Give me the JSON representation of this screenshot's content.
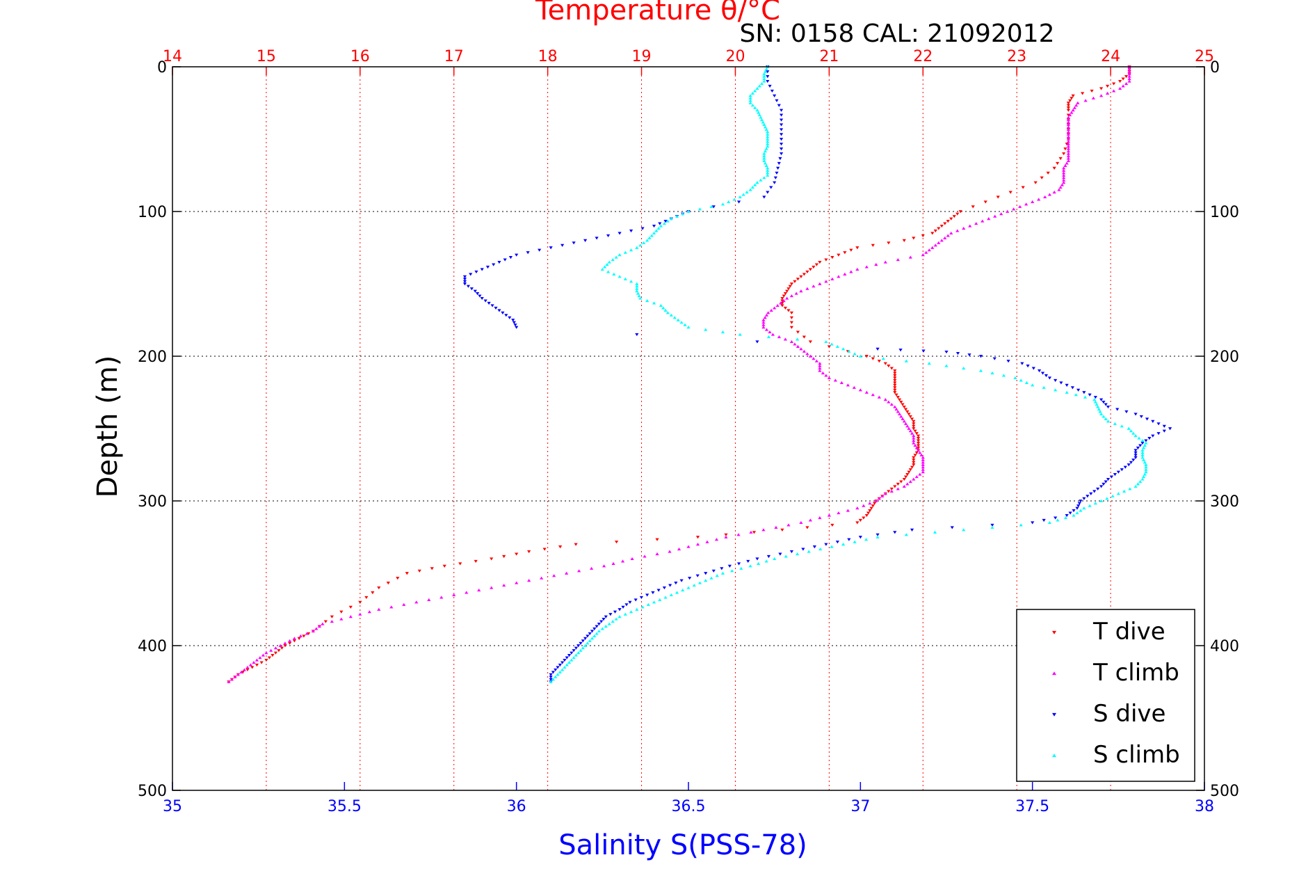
{
  "chart_data": {
    "type": "scatter",
    "title": "Temperature θ/°C",
    "subtitle": "SN: 0158  CAL: 21092012",
    "xlabel_top": "Temperature θ/°C",
    "xlabel_bottom": "Salinity S(PSS-78)",
    "ylabel": "Depth (m)",
    "x_top_lim": [
      14,
      25
    ],
    "x_top_ticks": [
      "14",
      "15",
      "16",
      "17",
      "18",
      "19",
      "20",
      "21",
      "22",
      "23",
      "24",
      "25"
    ],
    "x_bottom_lim": [
      35,
      38
    ],
    "x_bottom_ticks": [
      "35",
      "35.5",
      "36",
      "36.5",
      "37",
      "37.5",
      "38"
    ],
    "ylim": [
      0,
      500
    ],
    "y_reversed": true,
    "y_ticks": [
      "0",
      "100",
      "200",
      "300",
      "400",
      "500"
    ],
    "grid": true,
    "legend_position": "bottom-right",
    "colors": {
      "T dive": "#ff0000",
      "T climb": "#ff00ff",
      "S dive": "#0000ff",
      "S climb": "#00ffff",
      "top_axis": "#ff0000",
      "bottom_axis": "#0000ff"
    },
    "series": [
      {
        "name": "T dive",
        "axis": "temperature",
        "marker": "triangle-down",
        "depth": [
          0,
          5,
          10,
          15,
          20,
          25,
          30,
          40,
          50,
          60,
          70,
          80,
          90,
          100,
          105,
          110,
          115,
          120,
          125,
          130,
          135,
          140,
          145,
          150,
          155,
          160,
          165,
          170,
          180,
          190,
          200,
          205,
          210,
          215,
          220,
          225,
          230,
          235,
          240,
          245,
          250,
          255,
          260,
          265,
          270,
          275,
          280,
          285,
          290,
          295,
          300,
          305,
          310,
          315,
          320,
          325,
          330,
          335,
          340,
          345,
          350,
          360,
          370,
          380,
          390,
          395,
          400,
          405,
          410,
          415,
          420,
          425
        ],
        "values": [
          24.2,
          24.2,
          24.1,
          23.9,
          23.6,
          23.55,
          23.55,
          23.55,
          23.55,
          23.5,
          23.4,
          23.2,
          22.8,
          22.4,
          22.3,
          22.2,
          22.1,
          21.8,
          21.3,
          21.1,
          20.9,
          20.8,
          20.7,
          20.6,
          20.55,
          20.5,
          20.5,
          20.6,
          20.6,
          20.8,
          21.4,
          21.6,
          21.7,
          21.7,
          21.7,
          21.7,
          21.75,
          21.8,
          21.85,
          21.9,
          21.9,
          21.95,
          21.95,
          21.95,
          21.9,
          21.9,
          21.85,
          21.8,
          21.7,
          21.6,
          21.5,
          21.45,
          21.4,
          21.3,
          20.5,
          19.6,
          18.3,
          17.8,
          17.4,
          16.9,
          16.5,
          16.2,
          16.0,
          15.7,
          15.5,
          15.35,
          15.2,
          15.1,
          15.0,
          14.85,
          14.7,
          14.6
        ]
      },
      {
        "name": "T climb",
        "axis": "temperature",
        "marker": "triangle-up",
        "depth": [
          425,
          420,
          415,
          410,
          405,
          400,
          395,
          390,
          385,
          380,
          375,
          370,
          365,
          360,
          355,
          350,
          345,
          340,
          335,
          330,
          325,
          320,
          315,
          310,
          305,
          300,
          295,
          290,
          285,
          280,
          275,
          270,
          265,
          260,
          255,
          250,
          245,
          240,
          235,
          230,
          225,
          220,
          215,
          210,
          205,
          200,
          195,
          190,
          185,
          180,
          175,
          170,
          165,
          160,
          155,
          150,
          145,
          140,
          135,
          130,
          125,
          120,
          115,
          110,
          105,
          100,
          95,
          90,
          85,
          80,
          75,
          70,
          65,
          60,
          55,
          50,
          45,
          40,
          35,
          30,
          25,
          20,
          15,
          10,
          5,
          0
        ],
        "values": [
          14.6,
          14.7,
          14.8,
          14.9,
          15.0,
          15.15,
          15.3,
          15.5,
          15.6,
          15.9,
          16.2,
          16.6,
          17.0,
          17.4,
          17.8,
          18.2,
          18.6,
          18.9,
          19.3,
          19.6,
          19.9,
          20.3,
          20.7,
          21.0,
          21.3,
          21.5,
          21.6,
          21.8,
          21.9,
          22.0,
          22.0,
          22.0,
          21.95,
          21.9,
          21.9,
          21.85,
          21.8,
          21.75,
          21.7,
          21.6,
          21.4,
          21.2,
          21.0,
          20.9,
          20.9,
          20.8,
          20.7,
          20.6,
          20.4,
          20.3,
          20.3,
          20.35,
          20.45,
          20.55,
          20.7,
          20.9,
          21.1,
          21.3,
          21.6,
          22.0,
          22.1,
          22.2,
          22.3,
          22.5,
          22.7,
          22.9,
          23.1,
          23.3,
          23.45,
          23.5,
          23.5,
          23.5,
          23.55,
          23.55,
          23.55,
          23.55,
          23.55,
          23.55,
          23.55,
          23.6,
          23.65,
          23.9,
          24.1,
          24.2,
          24.2,
          24.2
        ]
      },
      {
        "name": "S dive",
        "axis": "salinity",
        "marker": "triangle-down",
        "depth": [
          0,
          10,
          20,
          30,
          40,
          50,
          60,
          70,
          80,
          90,
          100,
          105,
          110,
          115,
          120,
          125,
          130,
          135,
          140,
          145,
          150,
          155,
          160,
          165,
          170,
          175,
          180,
          195,
          197,
          200,
          205,
          210,
          215,
          220,
          225,
          230,
          235,
          240,
          245,
          250,
          255,
          260,
          265,
          270,
          275,
          280,
          285,
          290,
          295,
          300,
          305,
          310,
          315,
          320,
          325,
          330,
          335,
          340,
          345,
          350,
          355,
          360,
          365,
          370,
          375,
          380,
          385,
          390,
          395,
          400,
          405,
          410,
          415,
          420,
          425
        ],
        "values": [
          36.73,
          36.73,
          36.75,
          36.77,
          36.77,
          36.77,
          36.77,
          36.76,
          36.75,
          36.72,
          36.5,
          36.45,
          36.4,
          36.3,
          36.2,
          36.1,
          36.0,
          35.95,
          35.9,
          35.85,
          35.85,
          35.88,
          35.9,
          35.93,
          35.96,
          35.99,
          36.0,
          37.05,
          37.25,
          37.35,
          37.47,
          37.52,
          37.55,
          37.6,
          37.65,
          37.7,
          37.72,
          37.8,
          37.85,
          37.9,
          37.85,
          37.82,
          37.8,
          37.8,
          37.78,
          37.75,
          37.72,
          37.7,
          37.67,
          37.64,
          37.63,
          37.6,
          37.5,
          37.15,
          37.0,
          36.9,
          36.8,
          36.7,
          36.62,
          36.55,
          36.48,
          36.43,
          36.38,
          36.33,
          36.3,
          36.26,
          36.24,
          36.22,
          36.2,
          36.18,
          36.16,
          36.14,
          36.12,
          36.1,
          36.1
        ]
      },
      {
        "name": "S climb",
        "axis": "salinity",
        "marker": "triangle-up",
        "depth": [
          425,
          420,
          415,
          410,
          405,
          400,
          395,
          390,
          385,
          380,
          375,
          370,
          365,
          360,
          355,
          350,
          345,
          340,
          335,
          330,
          325,
          320,
          315,
          310,
          305,
          300,
          295,
          290,
          285,
          280,
          275,
          270,
          265,
          260,
          255,
          250,
          245,
          240,
          235,
          230,
          225,
          220,
          215,
          210,
          205,
          200,
          195,
          190,
          185,
          180,
          175,
          170,
          165,
          160,
          155,
          150,
          145,
          140,
          135,
          130,
          125,
          120,
          115,
          110,
          105,
          100,
          95,
          90,
          85,
          80,
          75,
          70,
          65,
          60,
          55,
          50,
          45,
          40,
          35,
          30,
          25,
          20,
          15,
          10,
          5,
          0
        ],
        "values": [
          36.1,
          36.12,
          36.14,
          36.16,
          36.18,
          36.2,
          36.22,
          36.24,
          36.27,
          36.3,
          36.35,
          36.4,
          36.45,
          36.5,
          36.55,
          36.6,
          36.68,
          36.75,
          36.85,
          36.95,
          37.05,
          37.3,
          37.55,
          37.62,
          37.65,
          37.7,
          37.75,
          37.8,
          37.82,
          37.83,
          37.83,
          37.82,
          37.82,
          37.83,
          37.8,
          37.78,
          37.72,
          37.7,
          37.69,
          37.68,
          37.6,
          37.5,
          37.45,
          37.35,
          37.2,
          37.0,
          36.95,
          36.9,
          36.65,
          36.5,
          36.47,
          36.44,
          36.42,
          36.36,
          36.35,
          36.35,
          36.3,
          36.25,
          36.27,
          36.3,
          36.35,
          36.38,
          36.4,
          36.42,
          36.45,
          36.5,
          36.6,
          36.65,
          36.68,
          36.7,
          36.73,
          36.73,
          36.72,
          36.72,
          36.73,
          36.73,
          36.73,
          36.72,
          36.71,
          36.7,
          36.68,
          36.68,
          36.7,
          36.72,
          36.72,
          36.73
        ]
      }
    ]
  }
}
